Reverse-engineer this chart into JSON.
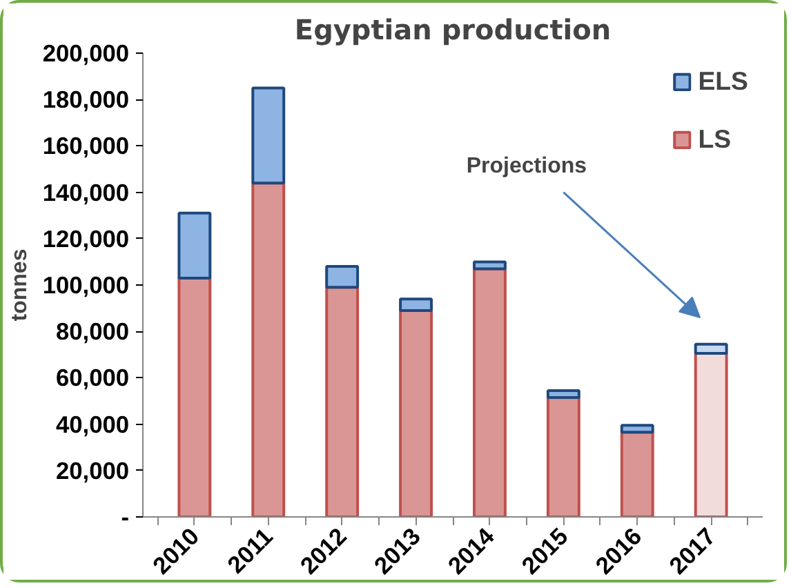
{
  "chart_data": {
    "type": "bar",
    "title": "Egyptian production",
    "ylabel": "tonnes",
    "stacked": true,
    "categories": [
      "2010",
      "2011",
      "2012",
      "2013",
      "2014",
      "2015",
      "2016",
      "2017"
    ],
    "series": [
      {
        "name": "LS",
        "color": "#da9694",
        "colors": [
          null,
          null,
          null,
          null,
          null,
          null,
          null,
          "#f2dcdb"
        ],
        "values": [
          103000,
          144000,
          99000,
          89000,
          107000,
          51500,
          36500,
          70500
        ]
      },
      {
        "name": "ELS",
        "color": "#8db4e2",
        "colors": [
          null,
          null,
          null,
          null,
          null,
          null,
          null,
          "#c5d9f1"
        ],
        "values": [
          28000,
          41000,
          9000,
          5000,
          3000,
          3000,
          3000,
          4000
        ]
      }
    ],
    "ylim": [
      0,
      200000
    ],
    "yticks": [
      {
        "value": 0,
        "label": "-"
      },
      {
        "value": 20000,
        "label": "20,000"
      },
      {
        "value": 40000,
        "label": "40,000"
      },
      {
        "value": 60000,
        "label": "60,000"
      },
      {
        "value": 80000,
        "label": "80,000"
      },
      {
        "value": 100000,
        "label": "100,000"
      },
      {
        "value": 120000,
        "label": "120,000"
      },
      {
        "value": 140000,
        "label": "140,000"
      },
      {
        "value": 160000,
        "label": "160,000"
      },
      {
        "value": 180000,
        "label": "180,000"
      },
      {
        "value": 200000,
        "label": "200,000"
      }
    ],
    "grid": false,
    "legend": "top right",
    "annotations": [
      "Projections"
    ]
  }
}
